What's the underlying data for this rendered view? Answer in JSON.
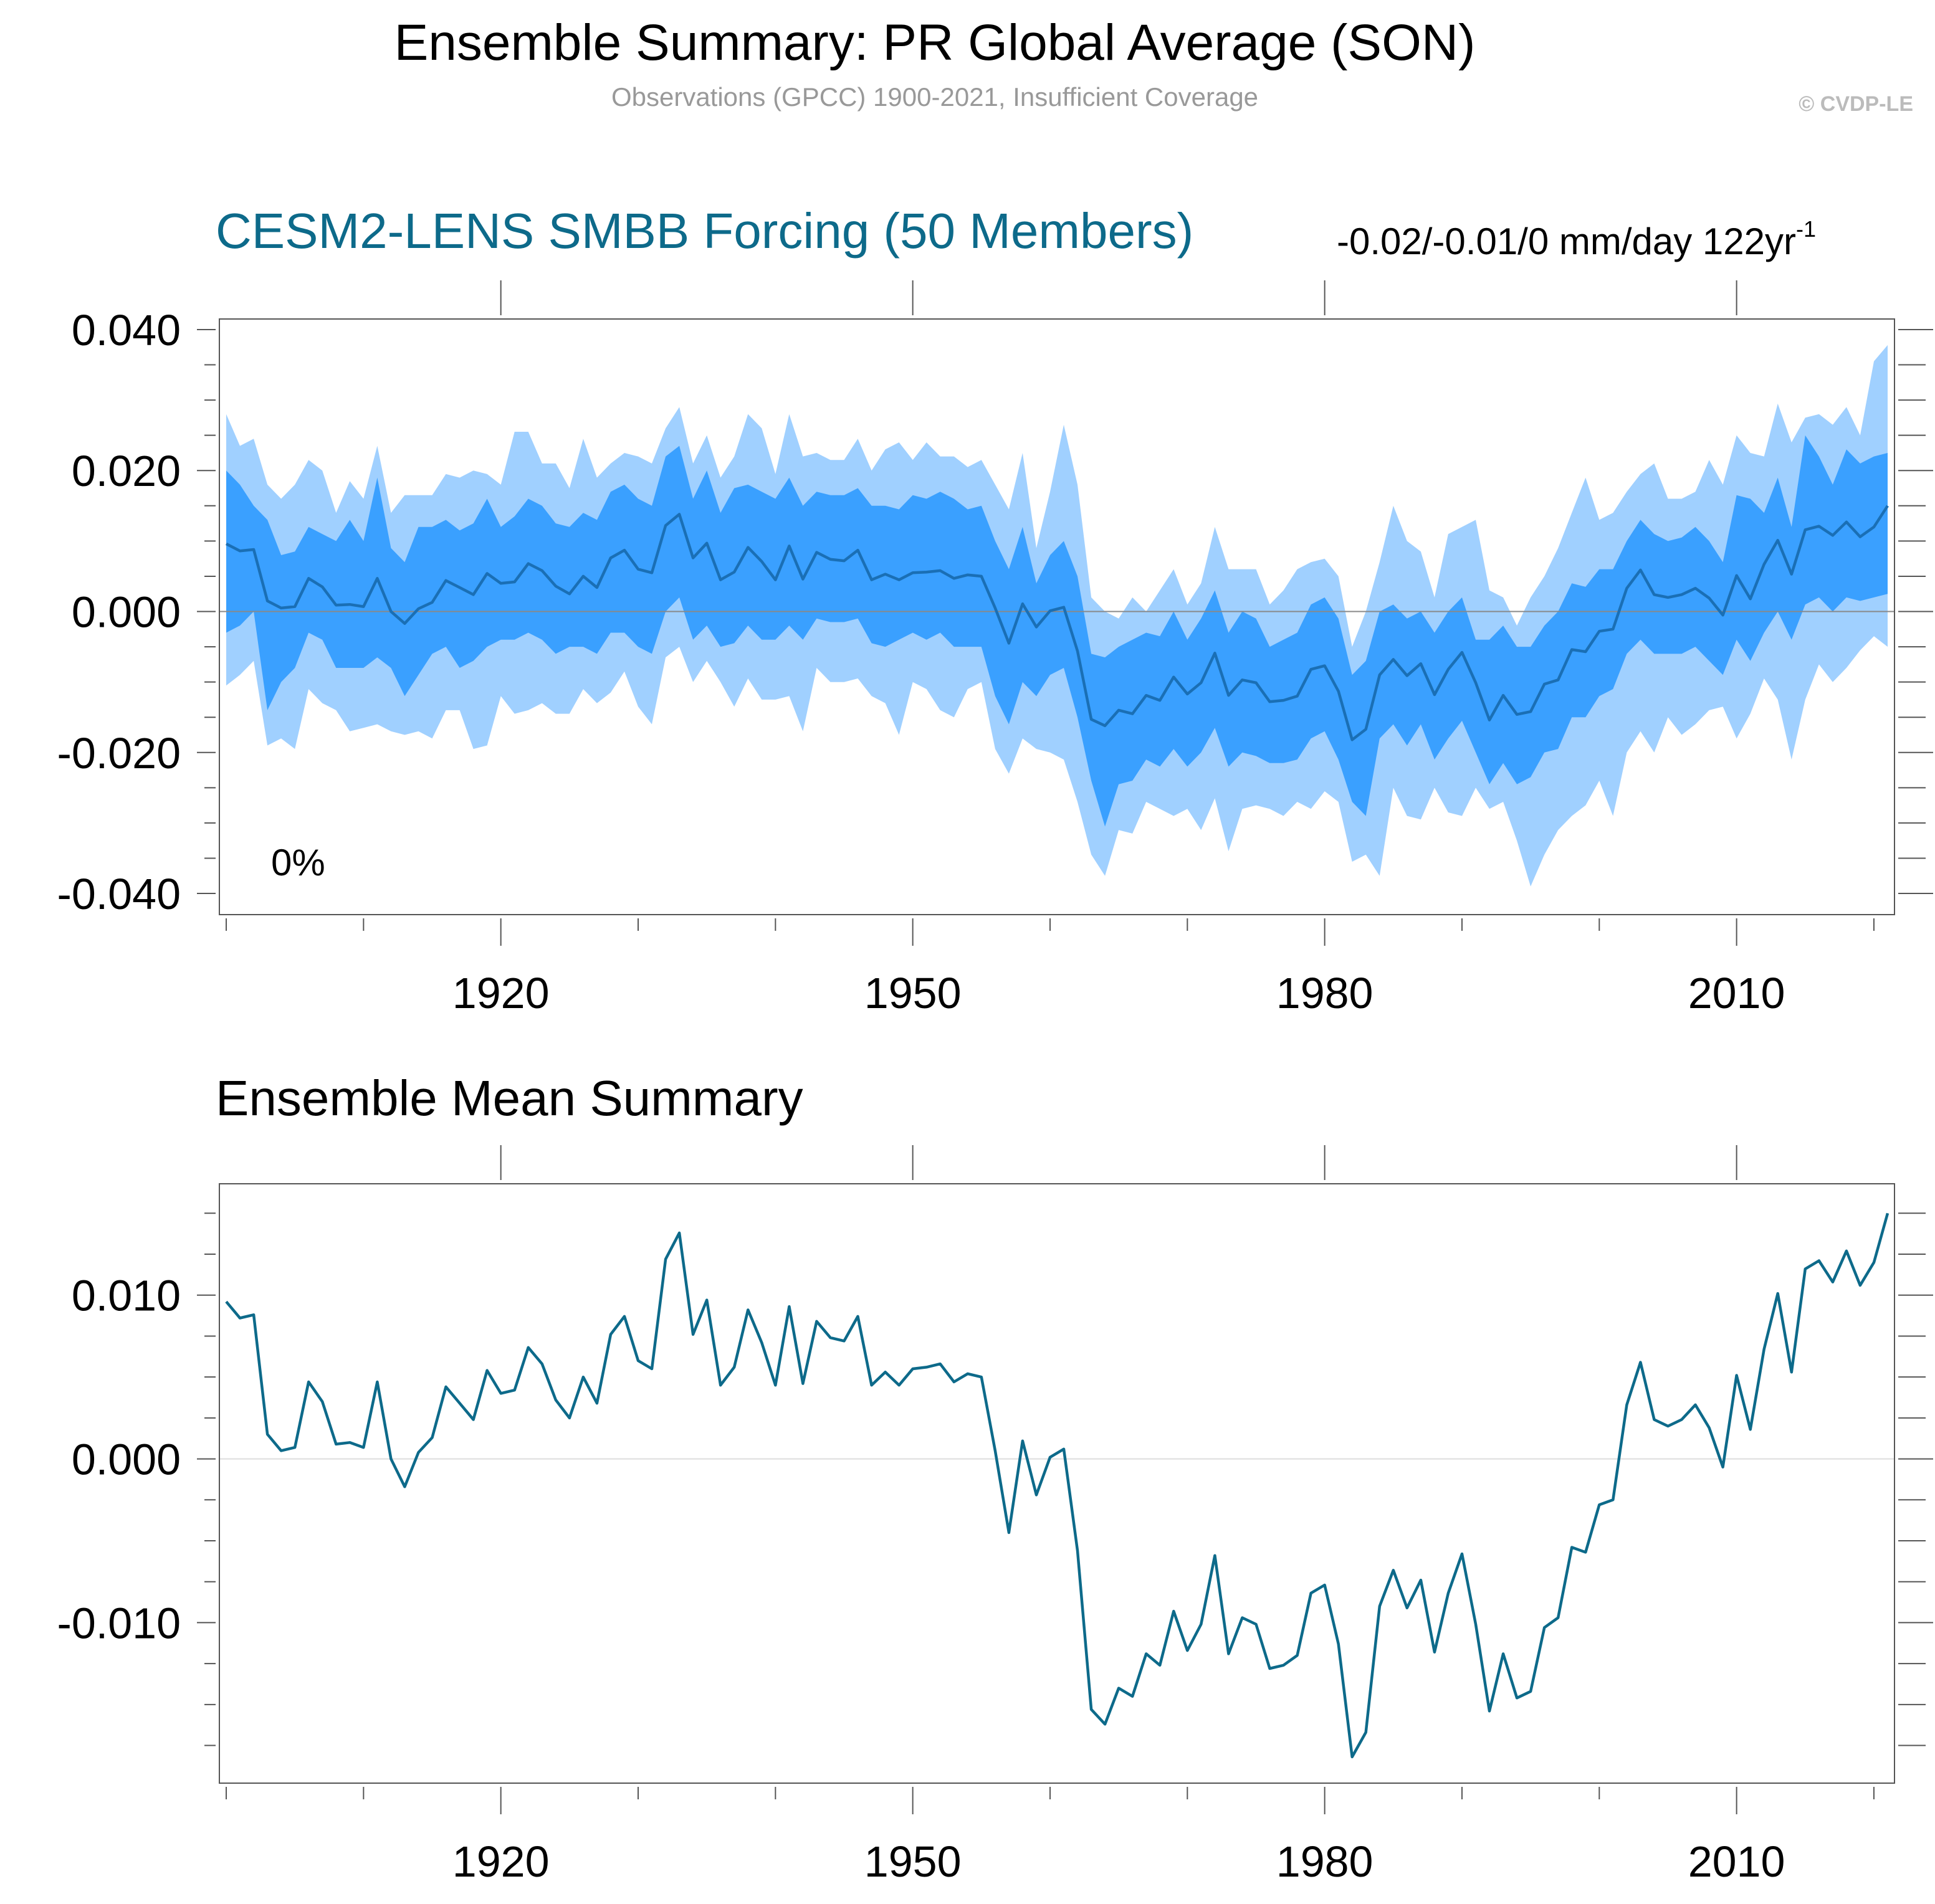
{
  "header": {
    "title": "Ensemble Summary: PR Global Average (SON)",
    "subtitle": "Observations (GPCC) 1900-2021, Insufficient Coverage",
    "copyright": "© CVDP-LE"
  },
  "colors": {
    "outer_band": "#a0d0ff",
    "inner_band": "#3aa0ff",
    "top_mean_line": "#1a6fb5",
    "bottom_line": "#0d6a8a",
    "model_title": "#0d6a8a",
    "axis": "#555555",
    "zero_line_top": "#888888",
    "zero_line_bottom": "#dddddd",
    "header_gray": "#999999",
    "copyright_gray": "#bbbbbb"
  },
  "chart_data": [
    {
      "type": "area",
      "panel": "top",
      "title": "CESM2-LENS SMBB Forcing (50 Members)",
      "trend_text": "-0.02/-0.01/0 mm/day 122yr",
      "trend_superscript": "-1",
      "corner_label": "0%",
      "xlim": [
        1899.5,
        2021.5
      ],
      "ylim": [
        -0.043,
        0.0415
      ],
      "x_ticks": [
        1920,
        1950,
        1980,
        2010
      ],
      "x_tick_labels": [
        "1920",
        "1950",
        "1980",
        "2010"
      ],
      "y_ticks": [
        0.04,
        0.02,
        0.0,
        -0.02,
        -0.04
      ],
      "y_tick_labels": [
        "0.040",
        "0.020",
        "0.000",
        "-0.020",
        "-0.040"
      ],
      "x_start": 1900,
      "x_end": 2021,
      "series": [
        {
          "name": "",
          "role": "mean",
          "values": [
            0.0096,
            0.0086,
            0.0088,
            0.0015,
            0.0005,
            0.0007,
            0.0047,
            0.0035,
            0.0009,
            0.001,
            0.0007,
            0.0047,
            0.0,
            -0.0017,
            0.0004,
            0.0013,
            0.0044,
            0.0034,
            0.0024,
            0.0054,
            0.004,
            0.0042,
            0.0068,
            0.0058,
            0.0036,
            0.0025,
            0.005,
            0.0034,
            0.0076,
            0.0087,
            0.006,
            0.0055,
            0.0122,
            0.0138,
            0.0076,
            0.0097,
            0.0045,
            0.0056,
            0.0091,
            0.0071,
            0.0045,
            0.0093,
            0.0046,
            0.0084,
            0.0074,
            0.0072,
            0.0087,
            0.0045,
            0.0053,
            0.0045,
            0.0055,
            0.0056,
            0.0058,
            0.0047,
            0.0052,
            0.005,
            0.0005,
            -0.0045,
            0.0011,
            -0.0022,
            0.0001,
            0.0006,
            -0.0056,
            -0.0153,
            -0.0162,
            -0.014,
            -0.0145,
            -0.0119,
            -0.0126,
            -0.0093,
            -0.0117,
            -0.0101,
            -0.0059,
            -0.0119,
            -0.0097,
            -0.0101,
            -0.0128,
            -0.0126,
            -0.012,
            -0.0082,
            -0.0077,
            -0.0113,
            -0.0182,
            -0.0167,
            -0.009,
            -0.0068,
            -0.0091,
            -0.0074,
            -0.0118,
            -0.0082,
            -0.0058,
            -0.0101,
            -0.0154,
            -0.0119,
            -0.0146,
            -0.0142,
            -0.0103,
            -0.0097,
            -0.0054,
            -0.0057,
            -0.0028,
            -0.0025,
            0.0033,
            0.0059,
            0.0024,
            0.002,
            0.0024,
            0.0033,
            0.0019,
            -0.0005,
            0.0051,
            0.0018,
            0.0067,
            0.0101,
            0.0053,
            0.0116,
            0.0121,
            0.0108,
            0.0127,
            0.0106,
            0.012,
            0.015
          ]
        },
        {
          "name": "",
          "role": "inner_band_upper",
          "values": [
            0.02,
            0.018,
            0.015,
            0.013,
            0.008,
            0.0085,
            0.012,
            0.011,
            0.01,
            0.013,
            0.01,
            0.019,
            0.009,
            0.007,
            0.012,
            0.012,
            0.013,
            0.0115,
            0.0125,
            0.016,
            0.012,
            0.0135,
            0.016,
            0.015,
            0.0125,
            0.012,
            0.014,
            0.013,
            0.017,
            0.018,
            0.016,
            0.015,
            0.022,
            0.0235,
            0.016,
            0.02,
            0.014,
            0.0175,
            0.018,
            0.017,
            0.016,
            0.019,
            0.015,
            0.017,
            0.0165,
            0.0165,
            0.0175,
            0.015,
            0.015,
            0.0145,
            0.0165,
            0.016,
            0.017,
            0.016,
            0.0145,
            0.015,
            0.01,
            0.006,
            0.012,
            0.004,
            0.008,
            0.01,
            0.005,
            -0.006,
            -0.0065,
            -0.005,
            -0.004,
            -0.003,
            -0.0035,
            0.0,
            -0.004,
            -0.001,
            0.003,
            -0.003,
            0.0,
            -0.001,
            -0.005,
            -0.004,
            -0.003,
            0.001,
            0.002,
            -0.001,
            -0.009,
            -0.007,
            0.0,
            0.001,
            -0.001,
            0.0,
            -0.003,
            0.0,
            0.002,
            -0.004,
            -0.004,
            -0.002,
            -0.005,
            -0.005,
            -0.002,
            0.0,
            0.004,
            0.0035,
            0.006,
            0.006,
            0.01,
            0.013,
            0.011,
            0.01,
            0.0105,
            0.012,
            0.01,
            0.007,
            0.0165,
            0.016,
            0.014,
            0.019,
            0.012,
            0.025,
            0.022,
            0.018,
            0.023,
            0.021,
            0.022,
            0.0225
          ]
        },
        {
          "name": "",
          "role": "inner_band_lower",
          "values": [
            -0.003,
            -0.002,
            0.0,
            -0.014,
            -0.01,
            -0.008,
            -0.003,
            -0.004,
            -0.008,
            -0.008,
            -0.008,
            -0.0065,
            -0.008,
            -0.012,
            -0.009,
            -0.006,
            -0.005,
            -0.008,
            -0.007,
            -0.005,
            -0.004,
            -0.004,
            -0.003,
            -0.004,
            -0.006,
            -0.005,
            -0.005,
            -0.006,
            -0.003,
            -0.003,
            -0.005,
            -0.006,
            0.0,
            0.002,
            -0.004,
            -0.002,
            -0.005,
            -0.0045,
            -0.002,
            -0.004,
            -0.004,
            -0.002,
            -0.004,
            -0.001,
            -0.0015,
            -0.0015,
            -0.001,
            -0.0045,
            -0.005,
            -0.004,
            -0.003,
            -0.004,
            -0.003,
            -0.005,
            -0.005,
            -0.005,
            -0.012,
            -0.016,
            -0.01,
            -0.012,
            -0.009,
            -0.008,
            -0.015,
            -0.024,
            -0.0305,
            -0.0245,
            -0.024,
            -0.021,
            -0.022,
            -0.0195,
            -0.022,
            -0.02,
            -0.0165,
            -0.022,
            -0.02,
            -0.0205,
            -0.0215,
            -0.0215,
            -0.021,
            -0.018,
            -0.017,
            -0.021,
            -0.027,
            -0.029,
            -0.018,
            -0.016,
            -0.019,
            -0.016,
            -0.021,
            -0.018,
            -0.0155,
            -0.02,
            -0.0245,
            -0.0215,
            -0.0245,
            -0.0235,
            -0.02,
            -0.0195,
            -0.015,
            -0.015,
            -0.012,
            -0.011,
            -0.006,
            -0.004,
            -0.006,
            -0.006,
            -0.006,
            -0.005,
            -0.007,
            -0.009,
            -0.004,
            -0.007,
            -0.003,
            0.0,
            -0.004,
            0.001,
            0.002,
            0.0,
            0.002,
            0.0015,
            0.002,
            0.0025
          ]
        },
        {
          "name": "",
          "role": "outer_band_upper",
          "values": [
            0.028,
            0.0235,
            0.0245,
            0.018,
            0.016,
            0.018,
            0.0215,
            0.02,
            0.014,
            0.0185,
            0.016,
            0.0235,
            0.014,
            0.0165,
            0.0165,
            0.0165,
            0.0195,
            0.019,
            0.02,
            0.0195,
            0.018,
            0.0255,
            0.0255,
            0.021,
            0.021,
            0.0175,
            0.0245,
            0.019,
            0.021,
            0.0225,
            0.022,
            0.021,
            0.026,
            0.029,
            0.021,
            0.025,
            0.019,
            0.022,
            0.028,
            0.026,
            0.0195,
            0.028,
            0.022,
            0.0225,
            0.0215,
            0.0215,
            0.0245,
            0.02,
            0.023,
            0.024,
            0.0215,
            0.024,
            0.022,
            0.022,
            0.0205,
            0.0215,
            0.018,
            0.0145,
            0.0225,
            0.009,
            0.017,
            0.0265,
            0.018,
            0.002,
            0.0,
            -0.001,
            0.002,
            0.0,
            0.003,
            0.006,
            0.001,
            0.004,
            0.012,
            0.006,
            0.006,
            0.006,
            0.001,
            0.003,
            0.006,
            0.007,
            0.0075,
            0.005,
            -0.005,
            0.0,
            0.007,
            0.015,
            0.01,
            0.0085,
            0.002,
            0.011,
            0.012,
            0.013,
            0.003,
            0.002,
            -0.002,
            0.002,
            0.005,
            0.009,
            0.014,
            0.019,
            0.013,
            0.014,
            0.017,
            0.0195,
            0.021,
            0.016,
            0.016,
            0.017,
            0.0215,
            0.018,
            0.025,
            0.0225,
            0.022,
            0.0295,
            0.024,
            0.0275,
            0.028,
            0.0265,
            0.029,
            0.025,
            0.0355,
            0.0378
          ]
        },
        {
          "name": "",
          "role": "outer_band_lower",
          "values": [
            -0.0105,
            -0.009,
            -0.007,
            -0.019,
            -0.018,
            -0.0195,
            -0.011,
            -0.013,
            -0.014,
            -0.017,
            -0.0165,
            -0.016,
            -0.017,
            -0.0175,
            -0.017,
            -0.018,
            -0.014,
            -0.014,
            -0.0195,
            -0.019,
            -0.012,
            -0.0145,
            -0.014,
            -0.013,
            -0.0145,
            -0.0145,
            -0.011,
            -0.013,
            -0.0115,
            -0.0085,
            -0.0135,
            -0.016,
            -0.0065,
            -0.005,
            -0.01,
            -0.007,
            -0.01,
            -0.0135,
            -0.0095,
            -0.0125,
            -0.0125,
            -0.012,
            -0.017,
            -0.008,
            -0.01,
            -0.01,
            -0.0095,
            -0.012,
            -0.013,
            -0.0175,
            -0.01,
            -0.011,
            -0.014,
            -0.015,
            -0.011,
            -0.01,
            -0.0195,
            -0.023,
            -0.018,
            -0.0195,
            -0.02,
            -0.021,
            -0.027,
            -0.0345,
            -0.0375,
            -0.031,
            -0.0315,
            -0.027,
            -0.028,
            -0.029,
            -0.028,
            -0.031,
            -0.0265,
            -0.034,
            -0.028,
            -0.0275,
            -0.028,
            -0.029,
            -0.027,
            -0.028,
            -0.0255,
            -0.027,
            -0.0355,
            -0.0345,
            -0.0375,
            -0.025,
            -0.029,
            -0.0295,
            -0.025,
            -0.0285,
            -0.029,
            -0.025,
            -0.028,
            -0.027,
            -0.0325,
            -0.039,
            -0.0345,
            -0.031,
            -0.029,
            -0.0275,
            -0.024,
            -0.029,
            -0.02,
            -0.017,
            -0.02,
            -0.015,
            -0.0175,
            -0.016,
            -0.014,
            -0.0135,
            -0.018,
            -0.0145,
            -0.0095,
            -0.0125,
            -0.021,
            -0.0125,
            -0.0075,
            -0.01,
            -0.008,
            -0.0055,
            -0.0035,
            -0.005
          ]
        }
      ]
    },
    {
      "type": "line",
      "panel": "bottom",
      "title": "Ensemble Mean Summary",
      "xlim": [
        1899.5,
        2021.5
      ],
      "ylim": [
        -0.0198,
        0.0168
      ],
      "x_ticks": [
        1920,
        1950,
        1980,
        2010
      ],
      "x_tick_labels": [
        "1920",
        "1950",
        "1980",
        "2010"
      ],
      "y_ticks": [
        0.01,
        0.0,
        -0.01
      ],
      "y_tick_labels": [
        "0.010",
        "0.000",
        "-0.010"
      ],
      "x_start": 1900,
      "x_end": 2021,
      "series": [
        {
          "name": "",
          "role": "mean",
          "values": [
            0.0096,
            0.0086,
            0.0088,
            0.0015,
            0.0005,
            0.0007,
            0.0047,
            0.0035,
            0.0009,
            0.001,
            0.0007,
            0.0047,
            0.0,
            -0.0017,
            0.0004,
            0.0013,
            0.0044,
            0.0034,
            0.0024,
            0.0054,
            0.004,
            0.0042,
            0.0068,
            0.0058,
            0.0036,
            0.0025,
            0.005,
            0.0034,
            0.0076,
            0.0087,
            0.006,
            0.0055,
            0.0122,
            0.0138,
            0.0076,
            0.0097,
            0.0045,
            0.0056,
            0.0091,
            0.0071,
            0.0045,
            0.0093,
            0.0046,
            0.0084,
            0.0074,
            0.0072,
            0.0087,
            0.0045,
            0.0053,
            0.0045,
            0.0055,
            0.0056,
            0.0058,
            0.0047,
            0.0052,
            0.005,
            0.0005,
            -0.0045,
            0.0011,
            -0.0022,
            0.0001,
            0.0006,
            -0.0056,
            -0.0153,
            -0.0162,
            -0.014,
            -0.0145,
            -0.0119,
            -0.0126,
            -0.0093,
            -0.0117,
            -0.0101,
            -0.0059,
            -0.0119,
            -0.0097,
            -0.0101,
            -0.0128,
            -0.0126,
            -0.012,
            -0.0082,
            -0.0077,
            -0.0113,
            -0.0182,
            -0.0167,
            -0.009,
            -0.0068,
            -0.0091,
            -0.0074,
            -0.0118,
            -0.0082,
            -0.0058,
            -0.0101,
            -0.0154,
            -0.0119,
            -0.0146,
            -0.0142,
            -0.0103,
            -0.0097,
            -0.0054,
            -0.0057,
            -0.0028,
            -0.0025,
            0.0033,
            0.0059,
            0.0024,
            0.002,
            0.0024,
            0.0033,
            0.0019,
            -0.0005,
            0.0051,
            0.0018,
            0.0067,
            0.0101,
            0.0053,
            0.0116,
            0.0121,
            0.0108,
            0.0127,
            0.0106,
            0.012,
            0.015
          ]
        }
      ]
    }
  ]
}
